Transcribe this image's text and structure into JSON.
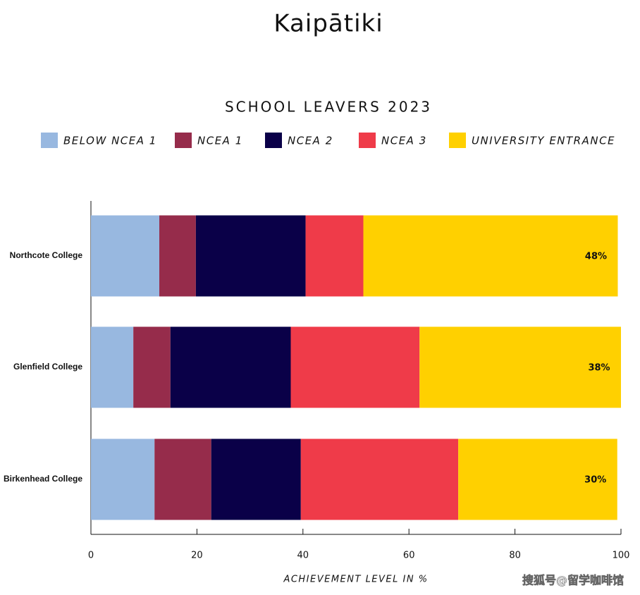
{
  "header": {
    "title": "Kaipātiki"
  },
  "watermark": "搜狐号@留学咖啡馆",
  "chart_data": {
    "type": "stacked-barh",
    "title": "SCHOOL LEAVERS 2023",
    "x_label": "ACHIEVEMENT LEVEL IN %",
    "categories": [
      "Northcote College",
      "Glenfield College",
      "Birkenhead College"
    ],
    "series": [
      {
        "name": "BELOW NCEA 1",
        "color": "#98b8e0",
        "values": [
          12.9,
          8,
          12
        ]
      },
      {
        "name": "NCEA 1",
        "color": "#962c4b",
        "values": [
          6.9,
          7,
          10.7
        ]
      },
      {
        "name": "NCEA 2",
        "color": "#0a0048",
        "values": [
          20.7,
          22.7,
          16.9
        ]
      },
      {
        "name": "NCEA 3",
        "color": "#ef3b49",
        "values": [
          10.9,
          24.3,
          29.7
        ]
      },
      {
        "name": "UNIVERSITY ENTRANCE",
        "color": "#ffd000",
        "values": [
          48,
          38,
          30
        ],
        "value_labels": [
          "48%",
          "38%",
          "30%"
        ]
      }
    ],
    "xlim": [
      0,
      100
    ],
    "xticks": [
      0,
      20,
      40,
      60,
      80,
      100
    ],
    "legend": "top"
  }
}
